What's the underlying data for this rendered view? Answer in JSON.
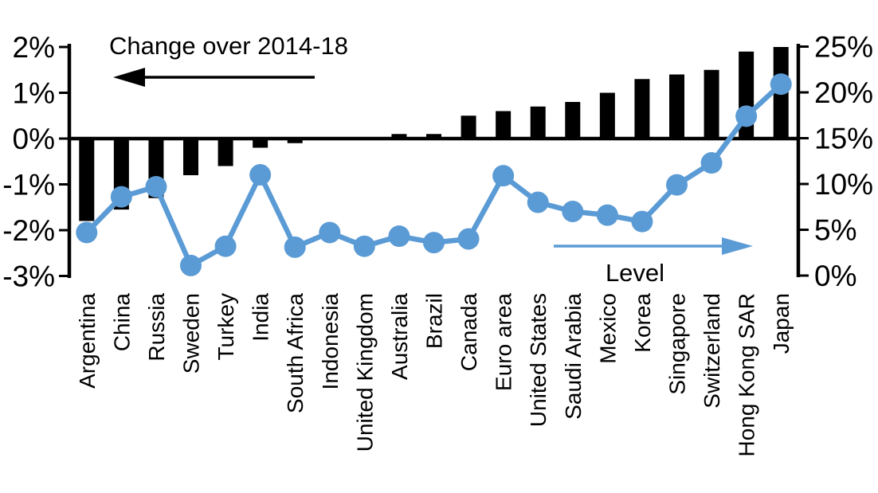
{
  "chart_data": {
    "type": "bar",
    "subtype": "dual-axis bar + line",
    "categories": [
      "Argentina",
      "China",
      "Russia",
      "Sweden",
      "Turkey",
      "India",
      "South Africa",
      "Indonesia",
      "United Kingdom",
      "Australia",
      "Brazil",
      "Canada",
      "Euro area",
      "United States",
      "Saudi Arabia",
      "Mexico",
      "Korea",
      "Singapore",
      "Switzerland",
      "Hong Kong SAR",
      "Japan"
    ],
    "series": [
      {
        "name": "Change over 2014-18",
        "type": "bar",
        "axis": "left",
        "color": "#000000",
        "values": [
          -1.8,
          -1.55,
          -1.3,
          -0.8,
          -0.6,
          -0.2,
          -0.1,
          0,
          0,
          0.1,
          0.1,
          0.5,
          0.6,
          0.7,
          0.8,
          1.0,
          1.3,
          1.4,
          1.5,
          1.9,
          2.0
        ]
      },
      {
        "name": "Level",
        "type": "line",
        "axis": "right",
        "color": "#5B9BD5",
        "values": [
          4.7,
          8.6,
          9.7,
          1.1,
          3.2,
          11.0,
          3.1,
          4.7,
          3.2,
          4.3,
          3.6,
          4.0,
          10.9,
          8.0,
          7.0,
          6.6,
          5.9,
          9.9,
          12.3,
          17.4,
          20.9
        ]
      }
    ],
    "left_axis": {
      "side": "left",
      "tick_labels": [
        "2%",
        "1%",
        "0%",
        "-1%",
        "-2%",
        "-3%"
      ],
      "tick_values": [
        2,
        1,
        0,
        -1,
        -2,
        -3
      ],
      "min": -3,
      "max": 2
    },
    "right_axis": {
      "side": "right",
      "tick_labels": [
        "25%",
        "20%",
        "15%",
        "10%",
        "5%",
        "0%"
      ],
      "tick_values": [
        25,
        20,
        15,
        10,
        5,
        0
      ],
      "min": 0,
      "max": 25
    },
    "annotations": {
      "bar_label": "Change over 2014-18",
      "bar_arrow_direction": "left",
      "bar_arrow_color": "#000000",
      "line_label": "Level",
      "line_arrow_direction": "right",
      "line_arrow_color": "#5B9BD5"
    },
    "legend_position": "in-plot annotations with arrows",
    "grid": false
  }
}
